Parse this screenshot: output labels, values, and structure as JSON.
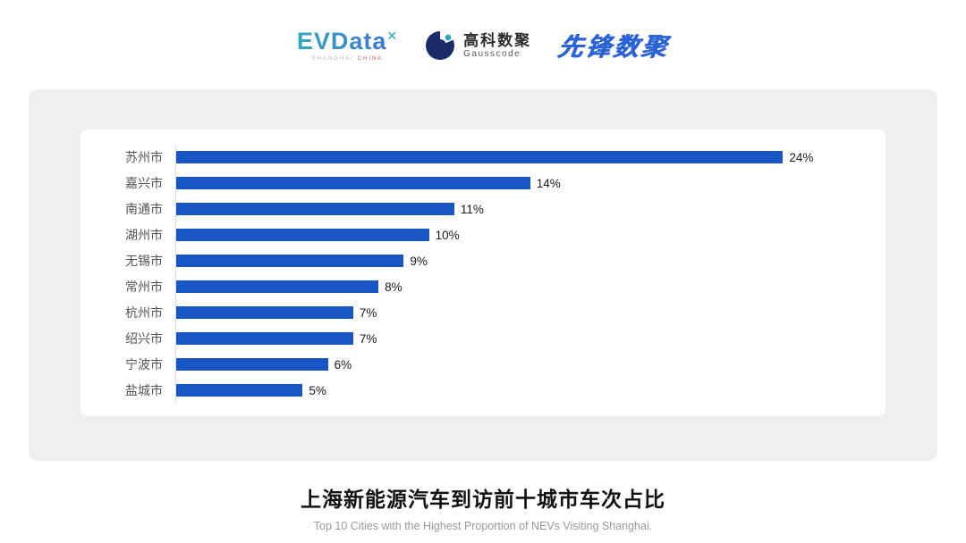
{
  "header": {
    "evdata": {
      "text": "EVData",
      "superscript": "✕",
      "subtext_left": "SHANGHAI",
      "subtext_right": "CHINA"
    },
    "gausscode": {
      "icon": "gausscode-circle-logo",
      "name_cn": "高科数聚",
      "name_en": "Gausscode"
    },
    "pioneer": {
      "text": "先锋数聚"
    }
  },
  "chart_data": {
    "type": "bar",
    "orientation": "horizontal",
    "title": "上海新能源汽车到访前十城市车次占比",
    "subtitle": "Top 10 Cities with the Highest Proportion of  NEVs Visiting Shanghai.",
    "categories": [
      "苏州市",
      "嘉兴市",
      "南通市",
      "湖州市",
      "无锡市",
      "常州市",
      "杭州市",
      "绍兴市",
      "宁波市",
      "盐城市"
    ],
    "values": [
      24,
      14,
      11,
      10,
      9,
      8,
      7,
      7,
      6,
      5
    ],
    "value_labels": [
      "24%",
      "14%",
      "11%",
      "10%",
      "9%",
      "8%",
      "7%",
      "7%",
      "6%",
      "5%"
    ],
    "bar_color": "#1856c5",
    "axis_max": 26.5,
    "xlabel": "",
    "ylabel": "",
    "grid": false,
    "legend": false
  }
}
